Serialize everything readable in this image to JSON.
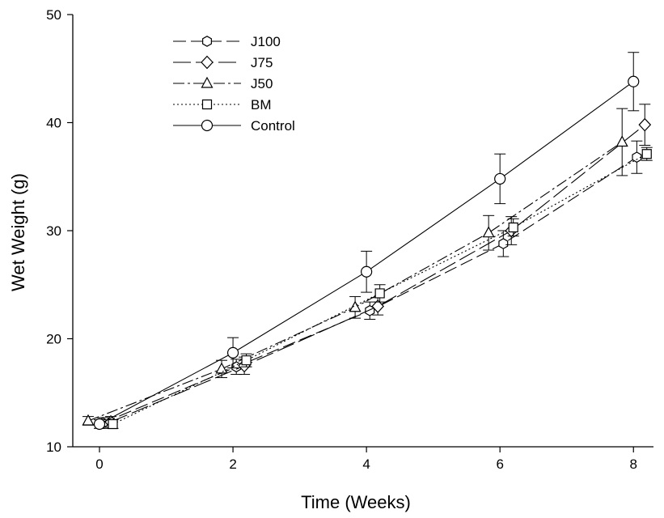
{
  "chart_data": {
    "type": "line",
    "title": "",
    "xlabel": "Time (Weeks)",
    "ylabel": "Wet Weight (g)",
    "xlim": [
      -0.4,
      8.3
    ],
    "ylim": [
      10,
      50
    ],
    "xticks": [
      0,
      2,
      4,
      6,
      8
    ],
    "yticks": [
      10,
      20,
      30,
      40,
      50
    ],
    "grid": false,
    "legend_position": "top-left",
    "series": [
      {
        "name": "J100",
        "marker": "hexagon",
        "dash": "dash",
        "points": [
          {
            "x": 0,
            "y": 12.2,
            "err": 0.5
          },
          {
            "x": 2,
            "y": 17.4,
            "err": 0.7
          },
          {
            "x": 4,
            "y": 22.6,
            "err": 0.8
          },
          {
            "x": 6,
            "y": 28.8,
            "err": 1.2
          },
          {
            "x": 8,
            "y": 36.8,
            "err": 1.5
          }
        ]
      },
      {
        "name": "J75",
        "marker": "diamond",
        "dash": "longdash",
        "points": [
          {
            "x": 0,
            "y": 12.3,
            "err": 0.5
          },
          {
            "x": 2,
            "y": 17.5,
            "err": 0.8
          },
          {
            "x": 4,
            "y": 23.0,
            "err": 0.8
          },
          {
            "x": 6,
            "y": 30.0,
            "err": 1.3
          },
          {
            "x": 8,
            "y": 39.8,
            "err": 1.9
          }
        ]
      },
      {
        "name": "J50",
        "marker": "triangle",
        "dash": "dashdot",
        "points": [
          {
            "x": 0,
            "y": 12.4,
            "err": 0.4
          },
          {
            "x": 2,
            "y": 17.2,
            "err": 0.8
          },
          {
            "x": 4,
            "y": 22.9,
            "err": 1.0
          },
          {
            "x": 6,
            "y": 29.8,
            "err": 1.6
          },
          {
            "x": 8,
            "y": 38.2,
            "err": 3.1
          }
        ]
      },
      {
        "name": "BM",
        "marker": "square",
        "dash": "dot",
        "points": [
          {
            "x": 0,
            "y": 12.1,
            "err": 0.4
          },
          {
            "x": 2,
            "y": 18.0,
            "err": 0.6
          },
          {
            "x": 4,
            "y": 24.2,
            "err": 0.8
          },
          {
            "x": 6,
            "y": 30.3,
            "err": 0.8
          },
          {
            "x": 8,
            "y": 37.1,
            "err": 0.6
          }
        ]
      },
      {
        "name": "Control",
        "marker": "circle",
        "dash": "solid",
        "points": [
          {
            "x": 0,
            "y": 12.1,
            "err": 0.4
          },
          {
            "x": 2,
            "y": 18.7,
            "err": 1.4
          },
          {
            "x": 4,
            "y": 26.2,
            "err": 1.9
          },
          {
            "x": 6,
            "y": 34.8,
            "err": 2.3
          },
          {
            "x": 8,
            "y": 43.8,
            "err": 2.7
          }
        ]
      }
    ]
  }
}
